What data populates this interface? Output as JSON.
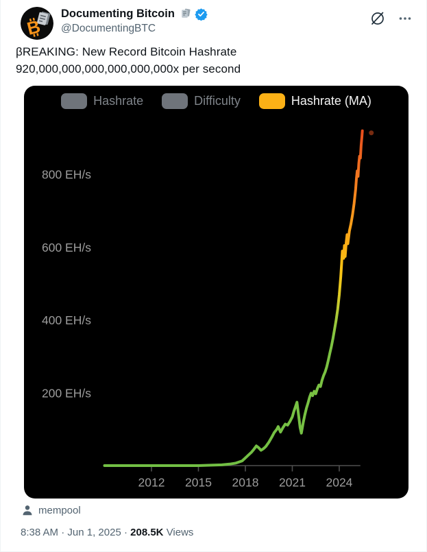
{
  "header": {
    "display_name": "Documenting Bitcoin",
    "handle": "@DocumentingBTC",
    "icons": {
      "avatar": "bitcoin-documents-avatar",
      "name_suffix": "paper-docs-icon",
      "verified": "verified-badge-icon",
      "grok": "grok-slash-icon",
      "more": "more-ellipsis-icon"
    },
    "verified_color": "#1d9bf0"
  },
  "tweet": {
    "line1": "βREAKING: New Record Bitcoin Hashrate",
    "line2": "920,000,000,000,000,000,000x per second"
  },
  "chart_data": {
    "type": "line",
    "background": "#000000",
    "legend": [
      {
        "label": "Hashrate",
        "color": "#6f747b",
        "text_color": "#7f848a",
        "active": false
      },
      {
        "label": "Difficulty",
        "color": "#6f747b",
        "text_color": "#7f848a",
        "active": false
      },
      {
        "label": "Hashrate (MA)",
        "color": "#fcb116",
        "text_color": "#f5f5f5",
        "active": true
      }
    ],
    "ylabel_unit": "EH/s",
    "y_ticks": [
      800,
      600,
      400,
      200
    ],
    "x_ticks": [
      2012,
      2015,
      2018,
      2021,
      2024
    ],
    "xlim": [
      2009,
      2025.6
    ],
    "ylim": [
      0,
      1040
    ],
    "grid": false,
    "axis_color": "#4f4f4f",
    "tick_label_color": "#9c9c9c",
    "series": [
      {
        "name": "Hashrate (MA)",
        "unit": "EH/s",
        "x": [
          2009,
          2010,
          2011,
          2012,
          2013,
          2014,
          2015,
          2015.8,
          2016.5,
          2017,
          2017.4,
          2017.8,
          2018,
          2018.2,
          2018.4,
          2018.55,
          2018.7,
          2018.85,
          2019,
          2019.15,
          2019.3,
          2019.5,
          2019.7,
          2019.85,
          2020,
          2020.1,
          2020.25,
          2020.4,
          2020.55,
          2020.7,
          2020.85,
          2021,
          2021.1,
          2021.2,
          2021.3,
          2021.4,
          2021.5,
          2021.58,
          2021.7,
          2021.8,
          2021.9,
          2022,
          2022.1,
          2022.2,
          2022.3,
          2022.4,
          2022.5,
          2022.6,
          2022.7,
          2022.8,
          2022.9,
          2023,
          2023.1,
          2023.2,
          2023.3,
          2023.4,
          2023.5,
          2023.6,
          2023.7,
          2023.8,
          2023.9,
          2024,
          2024.1,
          2024.15,
          2024.2,
          2024.28,
          2024.33,
          2024.38,
          2024.45,
          2024.5,
          2024.55,
          2024.65,
          2024.75,
          2024.85,
          2024.95,
          2025.05,
          2025.1,
          2025.15,
          2025.2,
          2025.25,
          2025.3,
          2025.35,
          2025.4,
          2025.45,
          2025.48
        ],
        "y": [
          1,
          1,
          1,
          1,
          1,
          1,
          1,
          2,
          3,
          5,
          8,
          14,
          22,
          30,
          38,
          46,
          55,
          50,
          43,
          47,
          53,
          65,
          80,
          92,
          100,
          108,
          93,
          105,
          115,
          112,
          122,
          135,
          150,
          162,
          175,
          140,
          105,
          90,
          120,
          140,
          158,
          172,
          188,
          200,
          193,
          205,
          198,
          212,
          222,
          218,
          235,
          248,
          258,
          272,
          290,
          310,
          328,
          350,
          375,
          400,
          430,
          470,
          520,
          555,
          590,
          570,
          605,
          575,
          615,
          635,
          610,
          645,
          665,
          690,
          720,
          760,
          790,
          810,
          795,
          830,
          850,
          845,
          880,
          905,
          920
        ]
      }
    ],
    "peak_value": 920,
    "line_gradient_stops": [
      {
        "value": 920,
        "color": "#e84e1d"
      },
      {
        "value": 830,
        "color": "#ef6c20"
      },
      {
        "value": 720,
        "color": "#f68d1e"
      },
      {
        "value": 620,
        "color": "#fbab16"
      },
      {
        "value": 540,
        "color": "#fdc313"
      },
      {
        "value": 470,
        "color": "#ddca24"
      },
      {
        "value": 410,
        "color": "#a6c938"
      },
      {
        "value": 350,
        "color": "#7ec342"
      },
      {
        "value": 0,
        "color": "#72bf44"
      }
    ],
    "current_dot_color": "#d94f1e"
  },
  "attribution": {
    "label": "mempool",
    "icon": "person-icon"
  },
  "footer": {
    "time": "8:38 AM",
    "separator": "·",
    "date": "Jun 1, 2025",
    "views_count": "208.5K",
    "views_label": "Views"
  }
}
